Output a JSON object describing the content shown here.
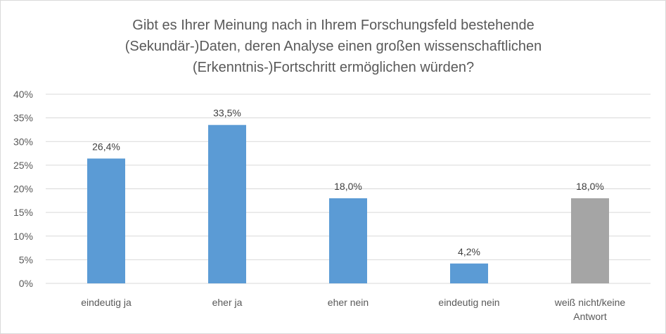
{
  "chart_data": {
    "type": "bar",
    "title": [
      "Gibt es Ihrer Meinung nach in Ihrem Forschungsfeld bestehende",
      "(Sekundär-)Daten, deren Analyse einen großen wissenschaftlichen",
      "(Erkenntnis-)Fortschritt ermöglichen würden?"
    ],
    "categories": [
      [
        "eindeutig ja"
      ],
      [
        "eher ja"
      ],
      [
        "eher nein"
      ],
      [
        "eindeutig nein"
      ],
      [
        "weiß nicht/keine",
        "Antwort"
      ]
    ],
    "values": [
      26.4,
      33.5,
      18.0,
      4.2,
      18.0
    ],
    "value_labels": [
      "26,4%",
      "33,5%",
      "18,0%",
      "4,2%",
      "18,0%"
    ],
    "y_ticks": [
      "0%",
      "5%",
      "10%",
      "15%",
      "20%",
      "25%",
      "30%",
      "35%",
      "40%"
    ],
    "ylim": [
      0,
      40
    ],
    "grid": true,
    "colors": [
      "#5b9bd5",
      "#5b9bd5",
      "#5b9bd5",
      "#5b9bd5",
      "#a5a5a5"
    ],
    "grid_color": "#d9d9d9"
  }
}
